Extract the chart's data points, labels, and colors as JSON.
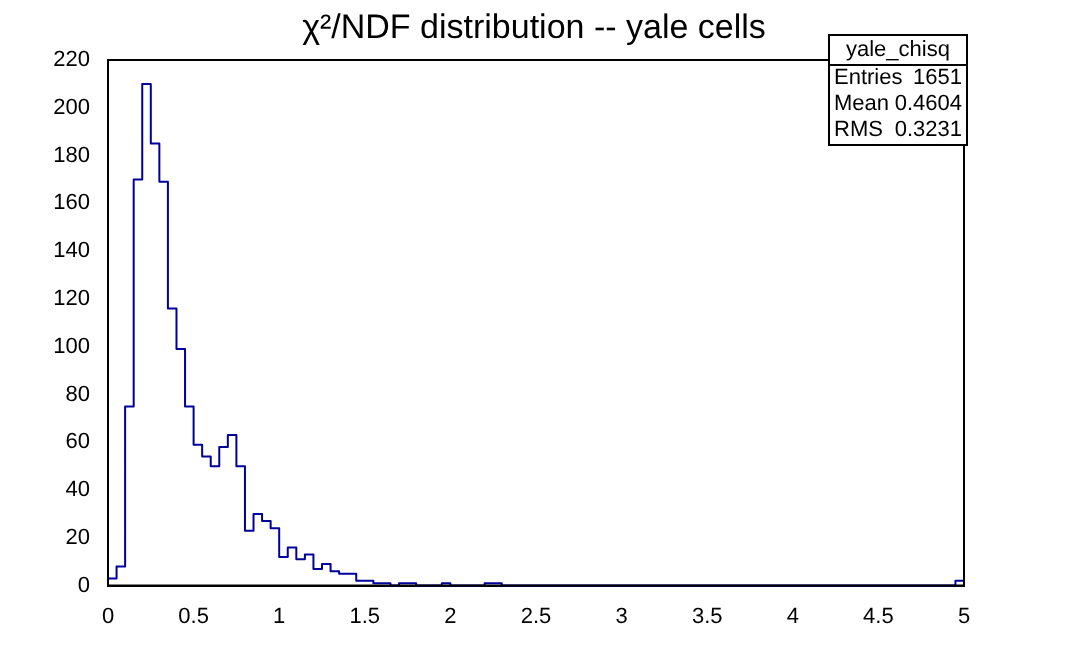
{
  "chart_data": {
    "type": "histogram",
    "title": "χ²/NDF distribution -- yale cells",
    "color": "#000099",
    "bins": [
      0,
      0.05,
      0.1,
      0.15,
      0.2,
      0.25,
      0.3,
      0.35,
      0.4,
      0.45,
      0.5,
      0.55,
      0.6,
      0.65,
      0.7,
      0.75,
      0.8,
      0.85,
      0.9,
      0.95,
      1,
      1.05,
      1.1,
      1.15,
      1.2,
      1.25,
      1.3,
      1.35,
      1.4,
      1.45,
      1.5,
      1.55,
      1.6,
      1.65,
      1.7,
      1.75,
      1.8,
      1.85,
      1.9,
      1.95,
      2,
      2.05,
      2.1,
      2.15,
      2.2,
      2.25,
      2.3,
      2.35,
      2.4,
      2.45,
      2.5,
      2.55,
      2.6,
      2.65,
      2.7,
      2.75,
      2.8,
      2.85,
      2.9,
      2.95,
      3,
      3.05,
      3.1,
      3.15,
      3.2,
      3.25,
      3.3,
      3.35,
      3.4,
      3.45,
      3.5,
      3.55,
      3.6,
      3.65,
      3.7,
      3.75,
      3.8,
      3.85,
      3.9,
      3.95,
      4,
      4.05,
      4.1,
      4.15,
      4.2,
      4.25,
      4.3,
      4.35,
      4.4,
      4.45,
      4.5,
      4.55,
      4.6,
      4.65,
      4.7,
      4.75,
      4.8,
      4.85,
      4.9,
      4.95,
      5
    ],
    "values": [
      3,
      8,
      75,
      170,
      210,
      185,
      169,
      116,
      99,
      75,
      59,
      54,
      50,
      58,
      63,
      50,
      23,
      30,
      27,
      24,
      12,
      16,
      11,
      13,
      7,
      9,
      6,
      5,
      5,
      2,
      2,
      1,
      1,
      0,
      1,
      1,
      0,
      0,
      0,
      1,
      0,
      0,
      0,
      0,
      1,
      1,
      0,
      0,
      0,
      0,
      0,
      0,
      0,
      0,
      0,
      0,
      0,
      0,
      0,
      0,
      0,
      0,
      0,
      0,
      0,
      0,
      0,
      0,
      0,
      0,
      0,
      0,
      0,
      0,
      0,
      0,
      0,
      0,
      0,
      0,
      0,
      0,
      0,
      0,
      0,
      0,
      0,
      0,
      0,
      0,
      0,
      0,
      0,
      0,
      0,
      0,
      0,
      0,
      0,
      2
    ],
    "xlim": [
      0,
      5
    ],
    "xticks": [
      0,
      0.5,
      1,
      1.5,
      2,
      2.5,
      3,
      3.5,
      4,
      4.5,
      5
    ],
    "ylim": [
      0,
      220
    ],
    "yticks": [
      0,
      20,
      40,
      60,
      80,
      100,
      120,
      140,
      160,
      180,
      200,
      220
    ],
    "grid": false,
    "legend": false,
    "annotations": [
      "yale_chisq",
      "Entries",
      "1651",
      "Mean",
      "0.4604",
      "RMS",
      "0.3231"
    ]
  }
}
